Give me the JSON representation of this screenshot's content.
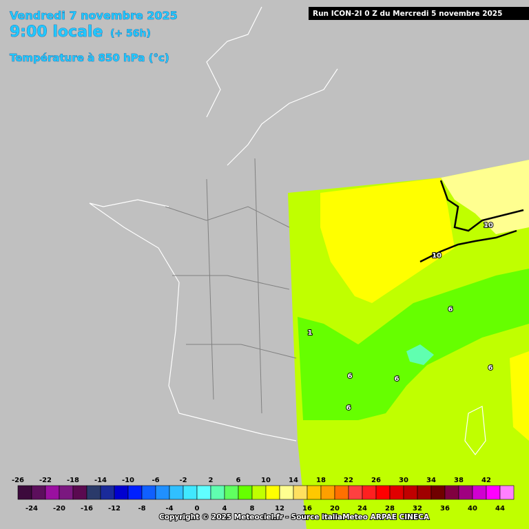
{
  "header": {
    "date": "Vendredi 7 novembre 2025",
    "time": "9:00 locale",
    "lead": "(+ 56h)",
    "field": "Température à 850 hPa (°c)",
    "run": "Run ICON-2I 0 Z du Mercredi 5 novembre 2025"
  },
  "map": {
    "contour_labels": [
      10,
      10,
      6,
      6,
      6,
      6,
      6,
      1
    ]
  },
  "legend": {
    "ticks": [
      -26,
      -24,
      -22,
      -20,
      -18,
      -16,
      -14,
      -12,
      -10,
      -8,
      -6,
      -4,
      -2,
      0,
      2,
      4,
      6,
      8,
      10,
      12,
      14,
      16,
      18,
      20,
      22,
      24,
      26,
      28,
      30,
      32,
      34,
      36,
      38,
      40,
      42,
      44
    ],
    "colors": [
      "#3c0a3c",
      "#5c0f5c",
      "#9a10a0",
      "#7b1880",
      "#5a0a50",
      "#2a3a6a",
      "#1a2a9a",
      "#0000d0",
      "#0020ff",
      "#1060ff",
      "#2090ff",
      "#30c0ff",
      "#40e8ff",
      "#60ffff",
      "#60ffb0",
      "#60ff60",
      "#66ff00",
      "#c0ff00",
      "#ffff00",
      "#ffff90",
      "#ffe060",
      "#ffc800",
      "#ffa000",
      "#ff7000",
      "#ff4040",
      "#ff2020",
      "#ff0000",
      "#e00000",
      "#c00000",
      "#a00000",
      "#700000",
      "#800040",
      "#a00080",
      "#d000d0",
      "#ff00ff",
      "#ff80ff"
    ]
  },
  "footer": {
    "copyright": "Copyright © 2025 Meteociel.fr - Source italiaMeteo ARPAE CINECA"
  }
}
